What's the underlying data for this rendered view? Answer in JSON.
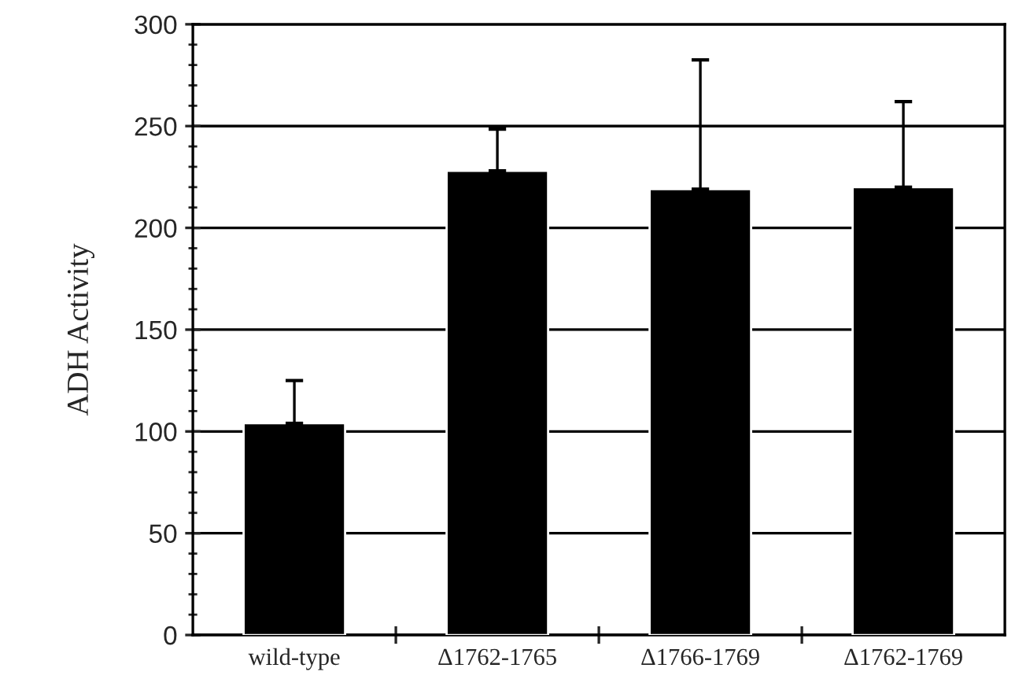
{
  "chart_data": {
    "type": "bar",
    "ylabel": "ADH Activity",
    "categories": [
      "wild-type",
      "Δ1762-1765",
      "Δ1766-1769",
      "Δ1762-1769"
    ],
    "values": [
      104,
      228,
      219,
      220
    ],
    "errors": [
      [
        104,
        125
      ],
      [
        228,
        248.5
      ],
      [
        219,
        282.5
      ],
      [
        220,
        262
      ]
    ],
    "color": "#000000",
    "ylim": [
      0,
      300
    ],
    "yticks": [
      0,
      50,
      100,
      150,
      200,
      250,
      300
    ],
    "grid": "y"
  }
}
